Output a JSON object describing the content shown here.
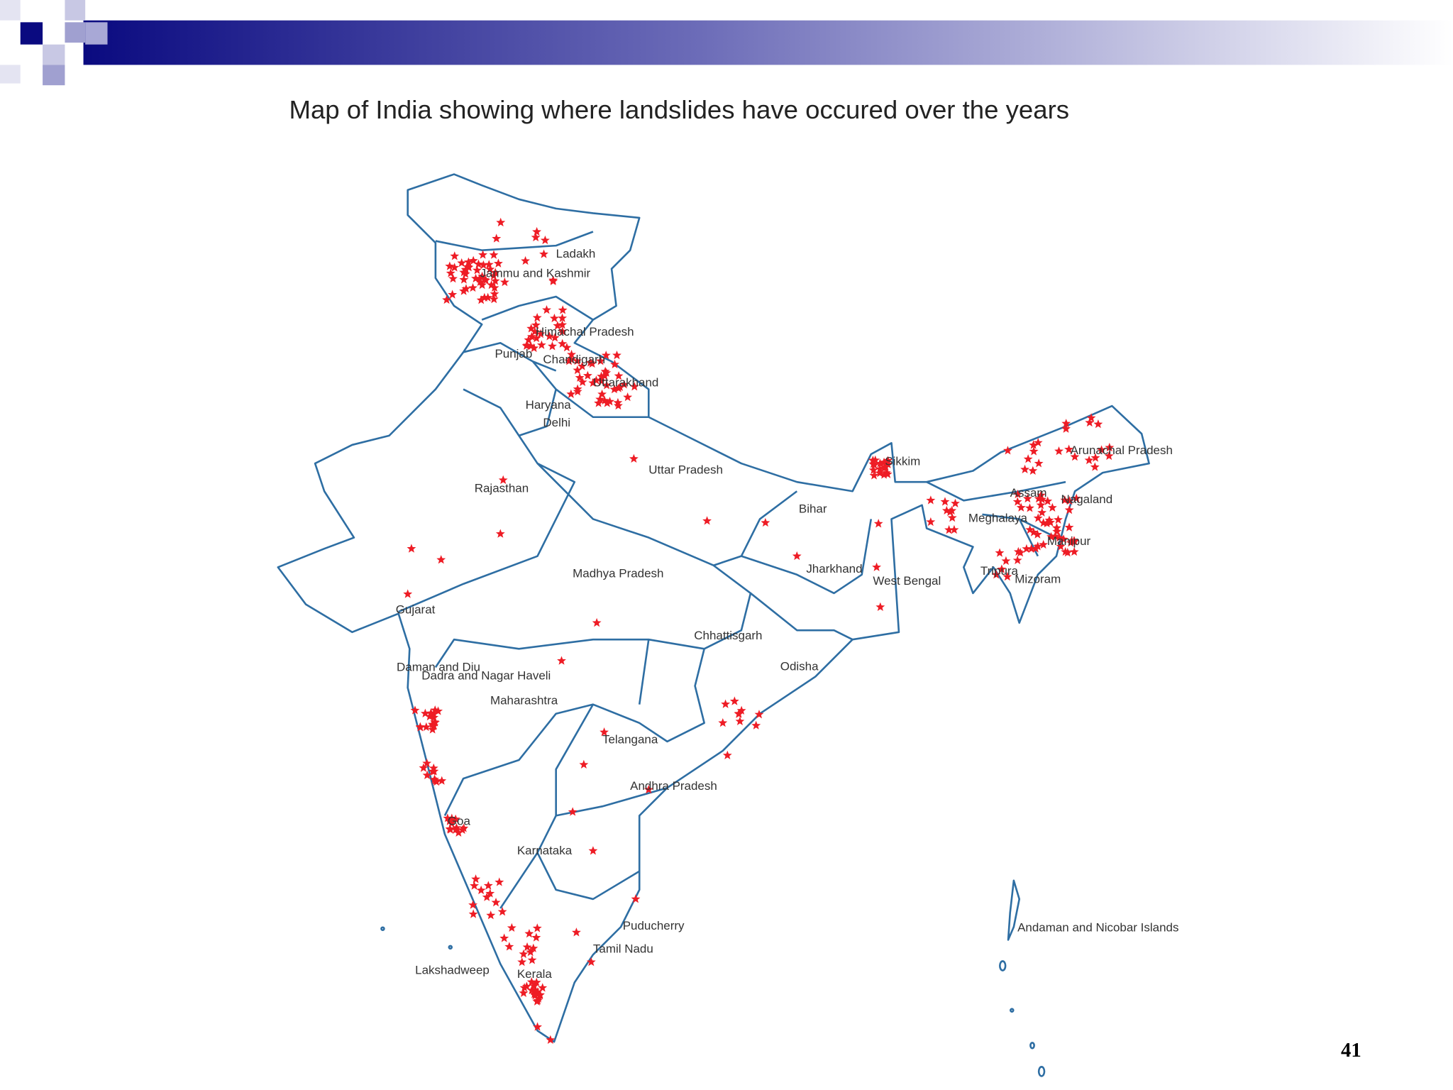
{
  "slide": {
    "title": "Map of India showing where landslides have occured over the years",
    "page_number": "41"
  },
  "map": {
    "labels": [
      "Ladakh",
      "Jammu and Kashmir",
      "Himachal Pradesh",
      "Punjab",
      "Chandigarh",
      "Uttarakhand",
      "Haryana",
      "Delhi",
      "Uttar Pradesh",
      "Rajasthan",
      "Bihar",
      "Sikkim",
      "Arunachal Pradesh",
      "Assam",
      "Nagaland",
      "Meghalaya",
      "Manipur",
      "Tripura",
      "Mizoram",
      "Jharkhand",
      "West Bengal",
      "Madhya Pradesh",
      "Gujarat",
      "Chhattisgarh",
      "Odisha",
      "Daman and Diu",
      "Dadra and Nagar Haveli",
      "Maharashtra",
      "Telangana",
      "Andhra Pradesh",
      "Goa",
      "Karnataka",
      "Puducherry",
      "Tamil Nadu",
      "Lakshadweep",
      "Kerala",
      "Andaman and Nicobar Islands"
    ]
  }
}
